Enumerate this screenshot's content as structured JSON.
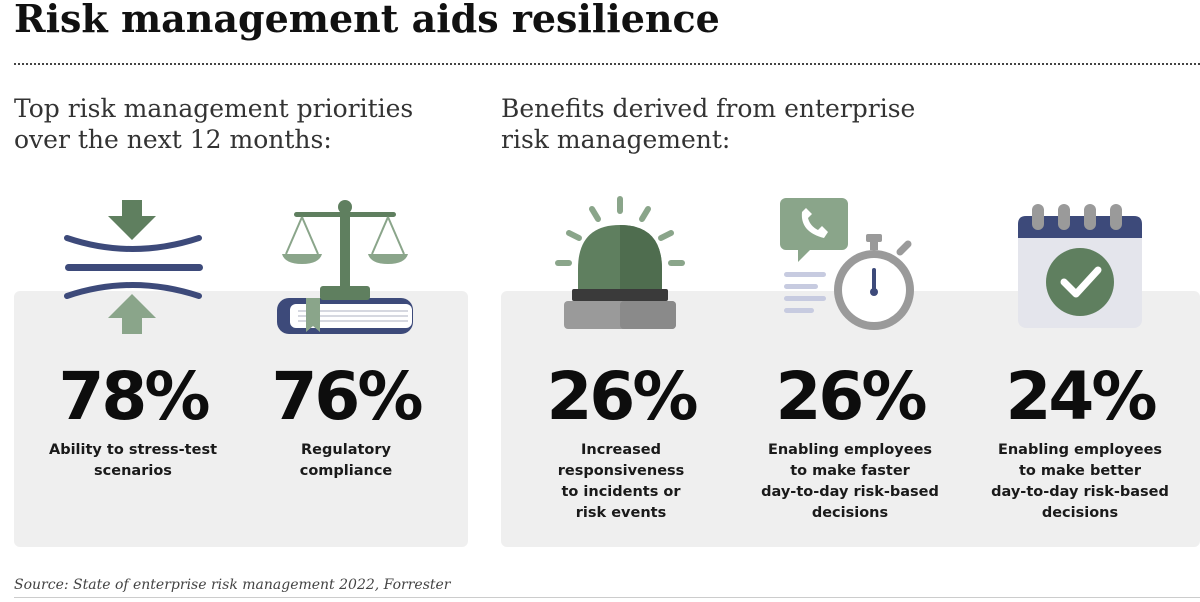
{
  "header": {
    "title": "Risk management aids resilience"
  },
  "priorities": {
    "heading_lines": [
      "Top risk management priorities",
      "over the next 12 months:"
    ],
    "items": [
      {
        "value": "78%",
        "label_lines": [
          "Ability to stress-test",
          "scenarios"
        ],
        "icon": "stress-test-icon"
      },
      {
        "value": "76%",
        "label_lines": [
          "Regulatory",
          "compliance"
        ],
        "icon": "scales-of-justice-icon"
      }
    ]
  },
  "benefits": {
    "heading_lines": [
      "Benefits derived from enterprise",
      "risk management:"
    ],
    "items": [
      {
        "value": "26%",
        "label_lines": [
          "Increased",
          "responsiveness",
          "to incidents or",
          "risk events"
        ],
        "icon": "alarm-siren-icon"
      },
      {
        "value": "26%",
        "label_lines": [
          "Enabling employees",
          "to make faster",
          "day-to-day risk-based",
          "decisions"
        ],
        "icon": "stopwatch-phone-icon"
      },
      {
        "value": "24%",
        "label_lines": [
          "Enabling employees",
          "to make better",
          "day-to-day risk-based",
          "decisions"
        ],
        "icon": "calendar-check-icon"
      }
    ]
  },
  "footer": {
    "source": "Source: State of enterprise risk management 2022, Forrester"
  },
  "colors": {
    "green_dark": "#5f7f5f",
    "green_light": "#8aa58a",
    "navy": "#3d4a7a",
    "panel_bg": "#efefef",
    "gray_icon": "#9a9a9a"
  }
}
